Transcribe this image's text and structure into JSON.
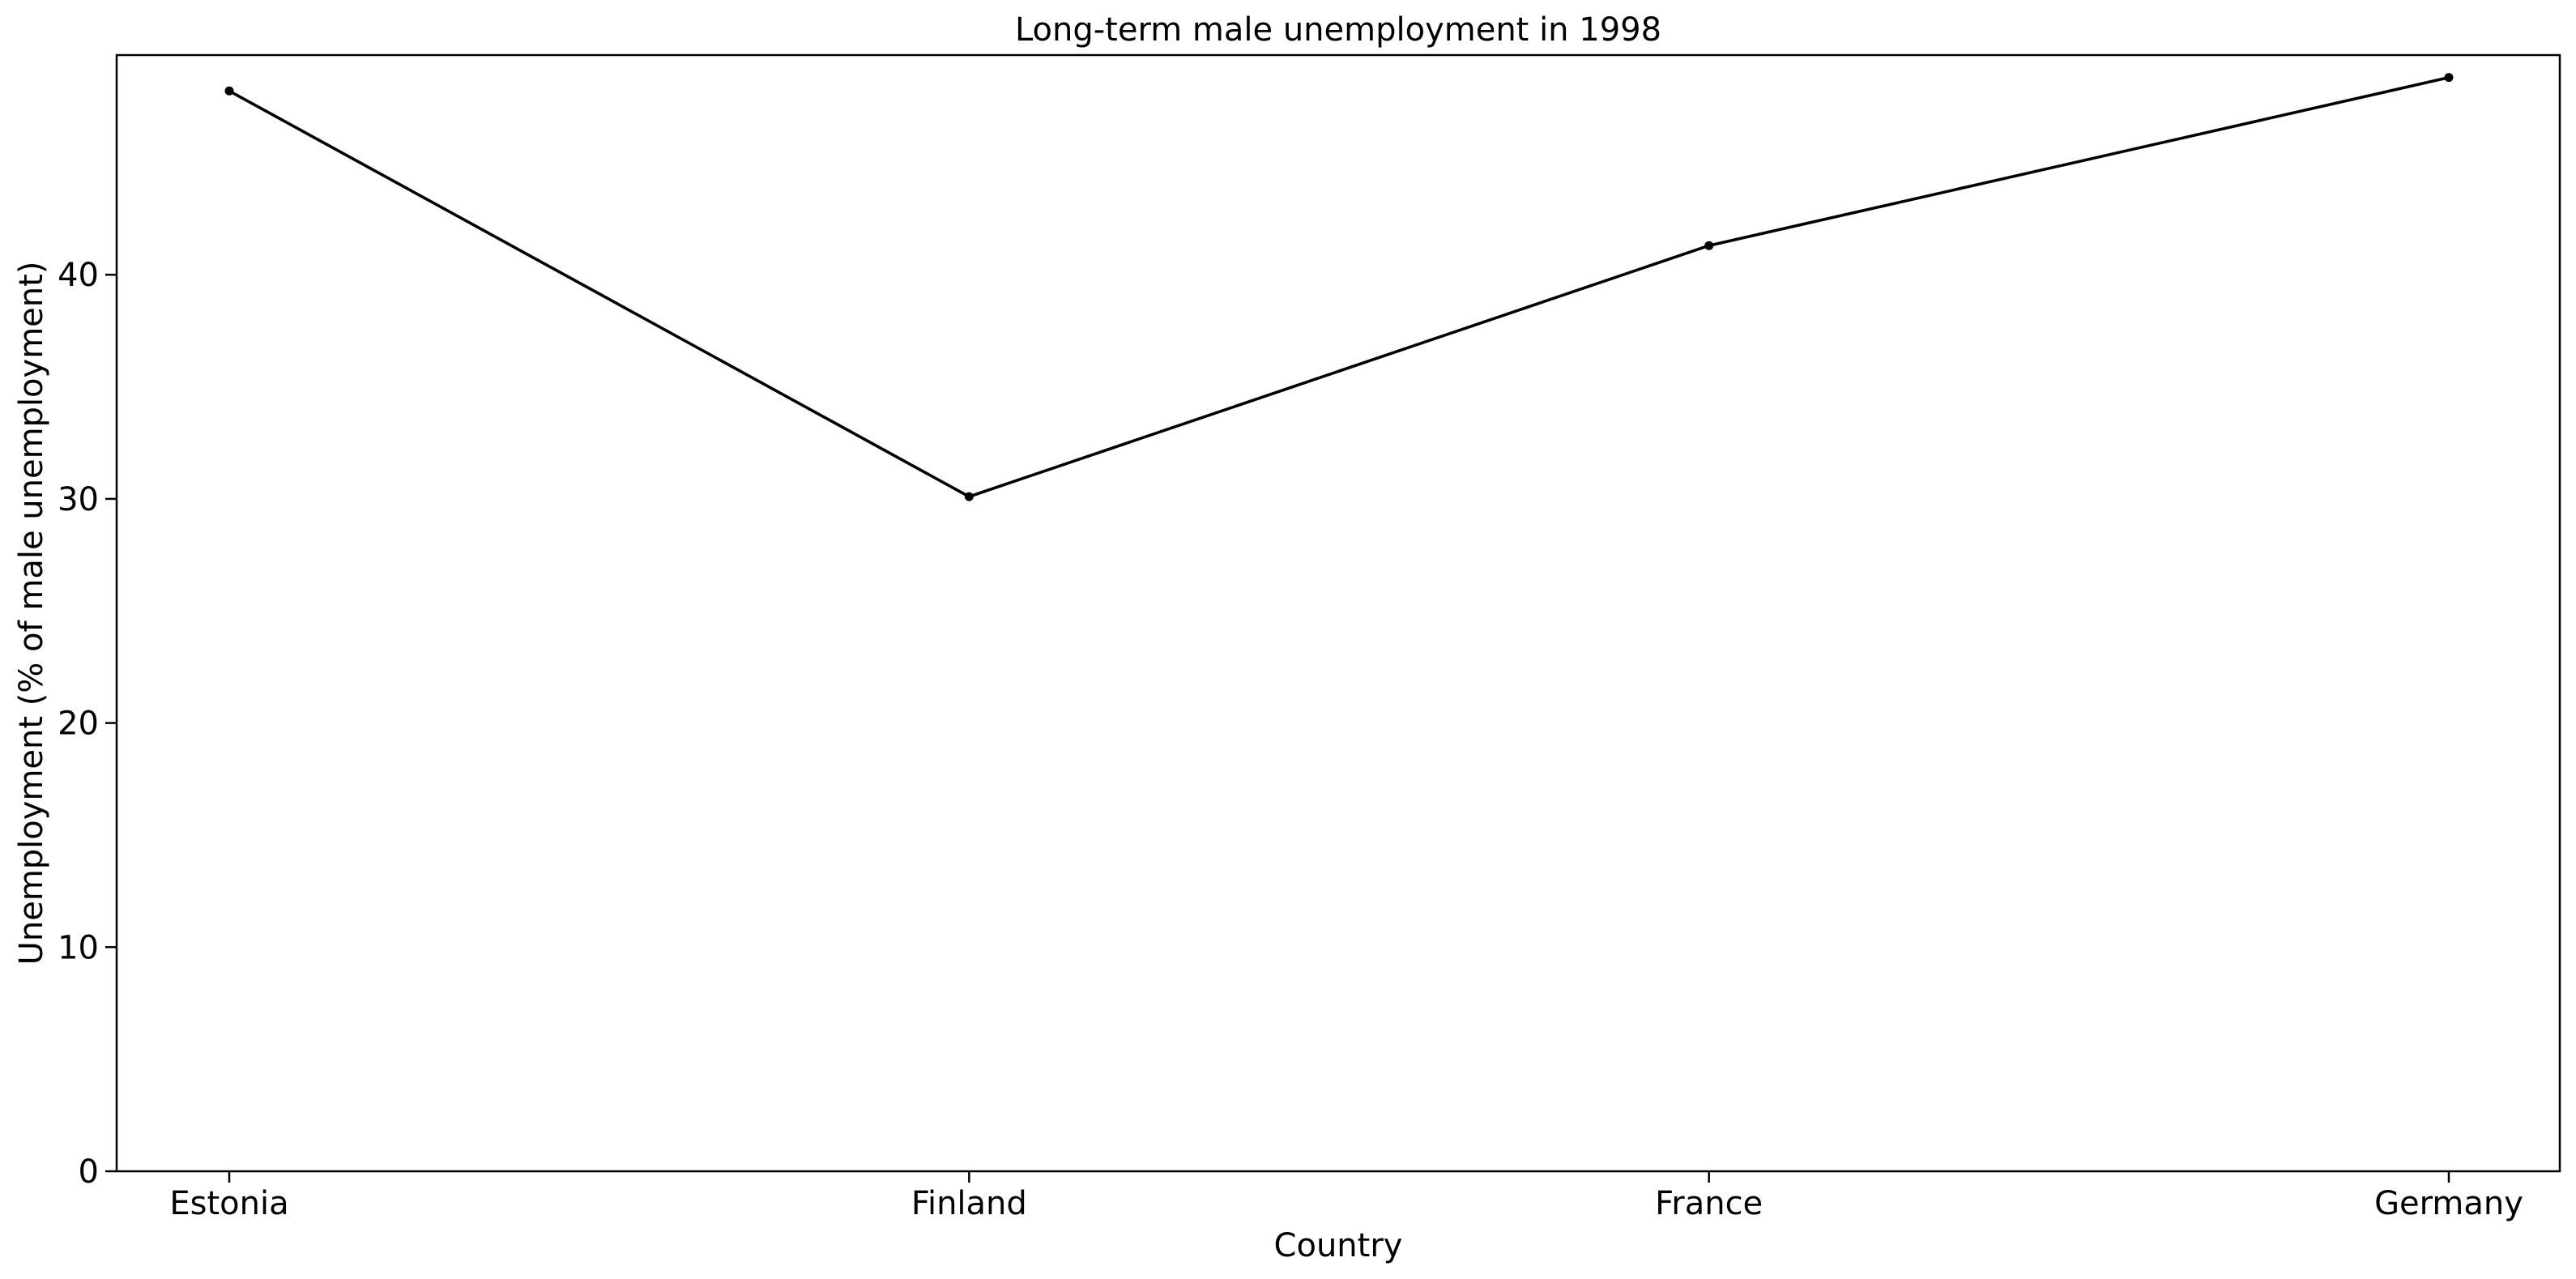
{
  "chart_data": {
    "type": "line",
    "title": "Long-term male unemployment in 1998",
    "xlabel": "Country",
    "ylabel": "Unemployment (% of male unemployment)",
    "categories": [
      "Estonia",
      "Finland",
      "France",
      "Germany"
    ],
    "series": [
      {
        "values": [
          48.2,
          30.1,
          41.3,
          48.8
        ],
        "color": "#000000",
        "marker": "dot"
      }
    ],
    "ylim": [
      0,
      49.8
    ],
    "yticks": [
      0,
      10,
      20,
      30,
      40
    ],
    "grid": false,
    "legend": "none"
  }
}
